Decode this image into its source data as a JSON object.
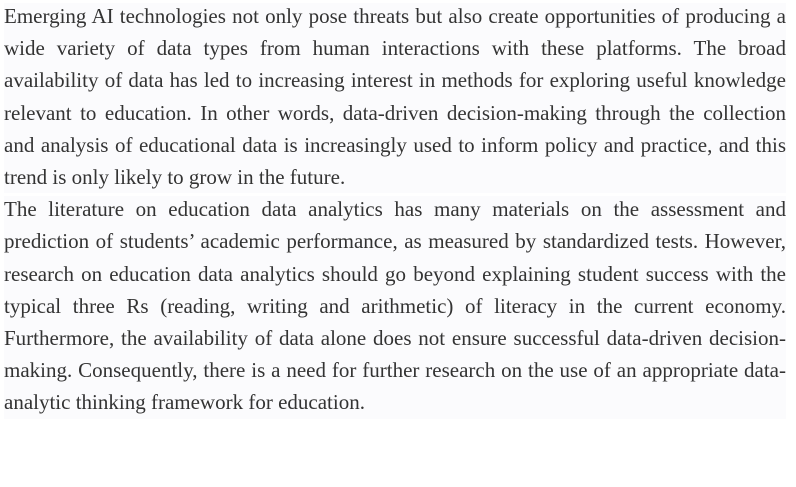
{
  "paragraphs": [
    {
      "text": "Emerging AI technologies not only pose threats but also create opportunities of producing a wide variety of data types from human interactions with these platforms. The broad availability of data has led to increasing interest in methods for exploring useful knowledge relevant to education. In other words, data-driven decision-making through the collection and analysis of educational data is increasingly used to inform policy and practice, and this trend is only likely to grow in the future."
    },
    {
      "text": "The literature on education data analytics has many materials on the assessment and prediction of students’ academic performance, as measured by standardized tests. However, research on education data analytics should go beyond explaining student success with the typical three Rs (reading, writing and arithmetic) of literacy in the current economy. Furthermore, the availability of data alone does not ensure successful data-driven decision-making. Consequently, there is a need for further research on the use of an appropriate data-analytic thinking framework for education."
    }
  ]
}
